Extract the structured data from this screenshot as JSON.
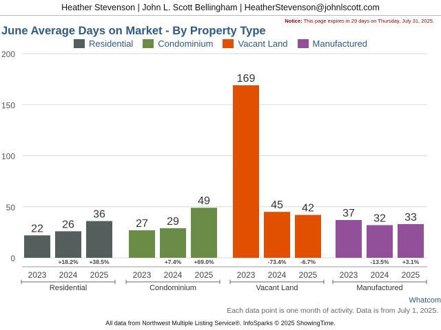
{
  "header": {
    "contact": "Heather Stevenson | John L. Scott Bellingham | HeatherStevenson@johnlscott.com",
    "notice_label": "Notice:",
    "notice_text": "This page expires in 29 days on Thursday, July 31, 2025."
  },
  "chart_data": {
    "type": "bar",
    "title": "June Average Days on Market - By Property Type",
    "ylim": [
      0,
      200
    ],
    "yticks": [
      0,
      50,
      100,
      150,
      200
    ],
    "grid": true,
    "legend_position": "top-center",
    "groups": [
      {
        "name": "Residential",
        "color": "#545e5c",
        "years": [
          "2023",
          "2024",
          "2025"
        ],
        "values": [
          22,
          26,
          36
        ],
        "changes": [
          "",
          "+18.2%",
          "+38.5%"
        ]
      },
      {
        "name": "Condominium",
        "color": "#6a8c47",
        "years": [
          "2023",
          "2024",
          "2025"
        ],
        "values": [
          27,
          29,
          49
        ],
        "changes": [
          "",
          "+7.4%",
          "+69.0%"
        ]
      },
      {
        "name": "Vacant Land",
        "color": "#e05000",
        "years": [
          "2023",
          "2024",
          "2025"
        ],
        "values": [
          169,
          45,
          42
        ],
        "changes": [
          "",
          "-73.4%",
          "-6.7%"
        ]
      },
      {
        "name": "Manufactured",
        "color": "#924f9a",
        "years": [
          "2023",
          "2024",
          "2025"
        ],
        "values": [
          37,
          32,
          33
        ],
        "changes": [
          "",
          "-13.5%",
          "+3.1%"
        ]
      }
    ]
  },
  "footer": {
    "brand": "Whatcom",
    "note": "Each data point is one month of activity. Data is from July 1, 2025.",
    "source": "All data from Northwest Multiple Listing Service®. InfoSparks © 2025 ShowingTime."
  }
}
